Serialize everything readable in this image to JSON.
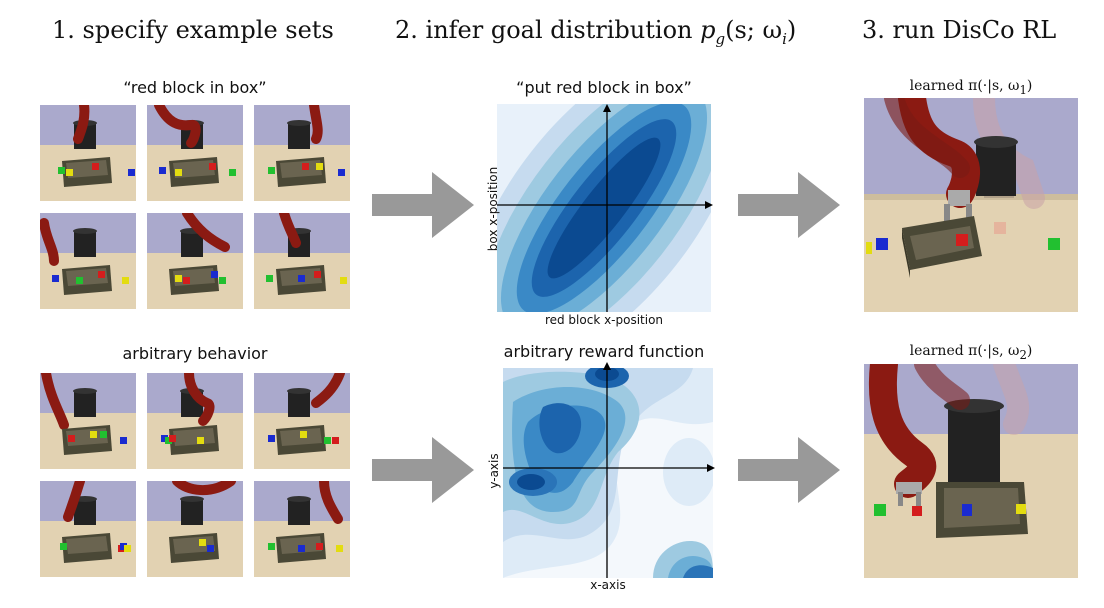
{
  "headings": {
    "step1": "1. specify example sets",
    "step2_prefix": "2. infer goal distribution ",
    "step2_math": "p",
    "step2_sub": "g",
    "step2_args": "(s; ω",
    "step2_args_sub": "i",
    "step2_close": ")",
    "step3": "3. run DisCo RL"
  },
  "top_row": {
    "examples_label": "“red block in box”",
    "plot_title": "“put red block in box”",
    "plot_xlabel": "red block x-position",
    "plot_ylabel": "box x-position",
    "policy_label_prefix": "learned π(·|s, ω",
    "policy_label_sub": "1",
    "policy_label_close": ")"
  },
  "bottom_row": {
    "examples_label": "arbitrary behavior",
    "plot_title": "arbitrary reward function",
    "plot_xlabel": "x-axis",
    "plot_ylabel": "y-axis",
    "policy_label_prefix": "learned π(·|s, ω",
    "policy_label_sub": "2",
    "policy_label_close": ")"
  },
  "colors": {
    "sky": "#aaa9cc",
    "floor": "#e2d2b2",
    "robot": "#8b1a12",
    "box": "#4a4836",
    "arrow": "#999999",
    "blue_dark": "#08306b",
    "blue_light": "#deebf7"
  }
}
